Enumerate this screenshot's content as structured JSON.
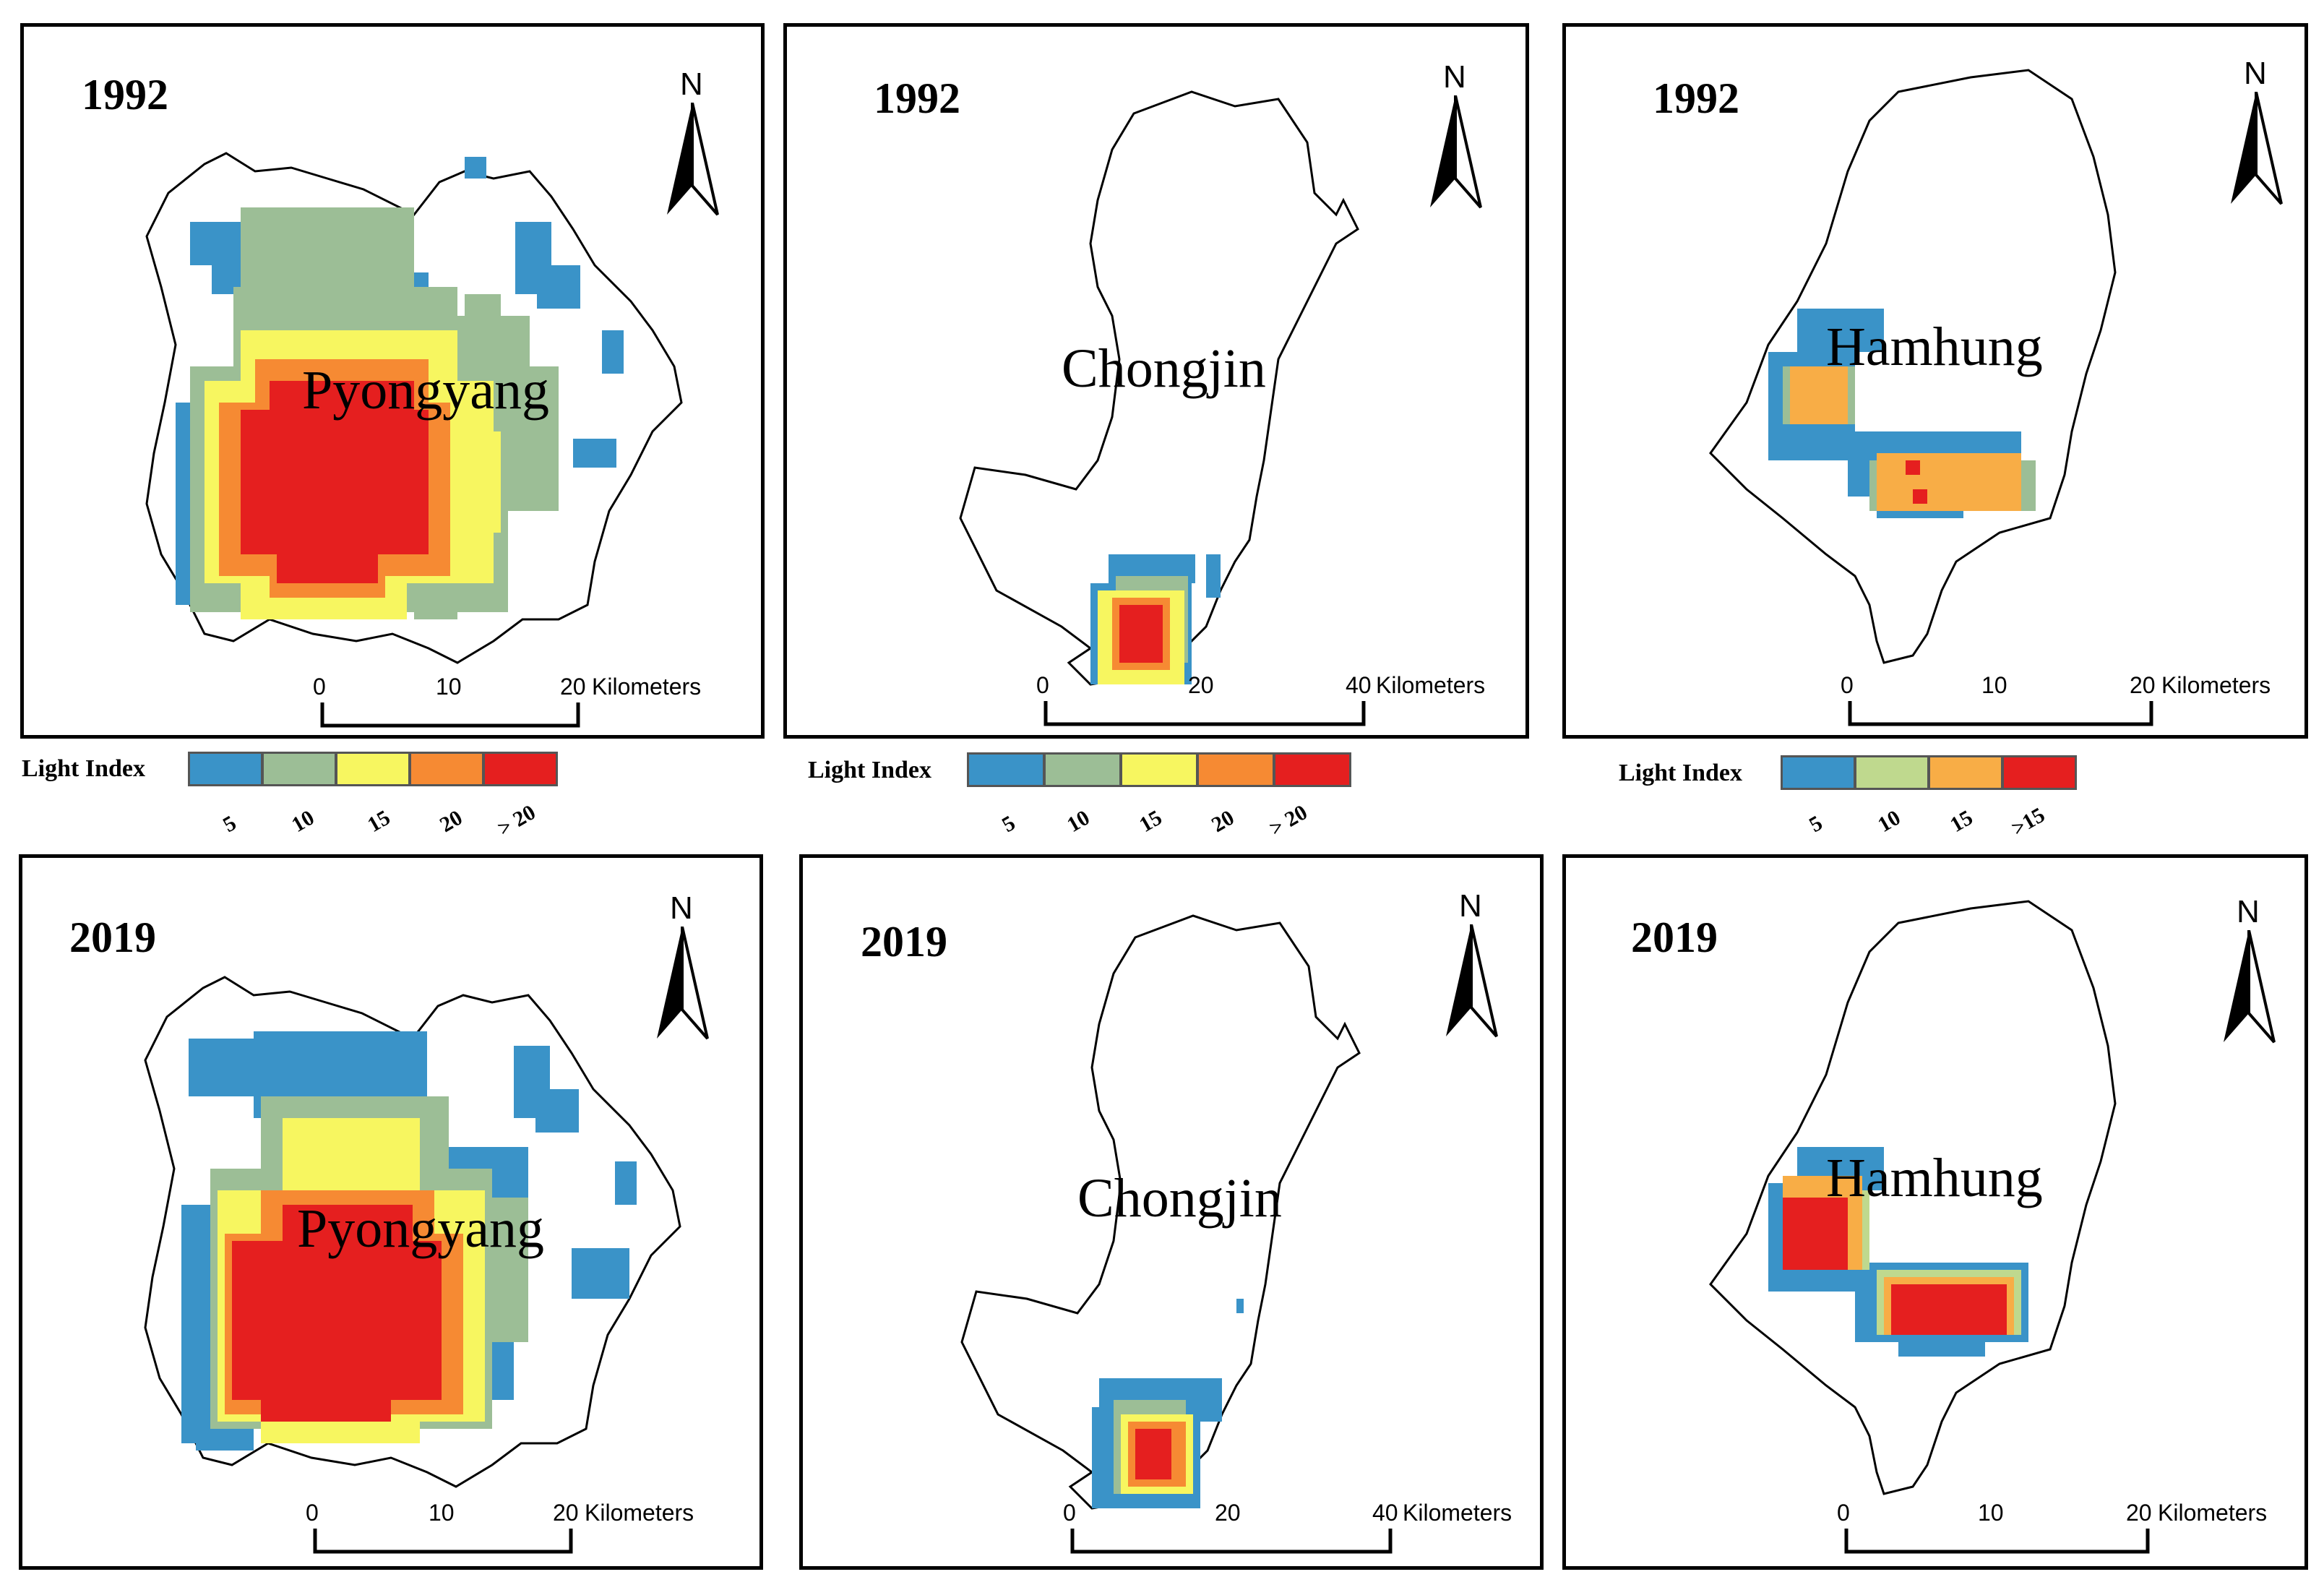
{
  "legend_title": "Light Index",
  "north_label": "N",
  "unit": "Kilometers",
  "colors": {
    "c5": "#3a93c8",
    "c10_gray": "#9cbe96",
    "c10_green": "#bfd98e",
    "c15_yellow": "#f7f660",
    "c15_orange": "#f8ad46",
    "c20": "#f68a33",
    "max": "#e51f1f"
  },
  "legends": [
    {
      "labels": [
        "5",
        "10",
        "15",
        "20",
        "> 20"
      ]
    },
    {
      "labels": [
        "5",
        "10",
        "15",
        "20",
        "> 20"
      ]
    },
    {
      "labels": [
        "5",
        "10",
        "15",
        ">15"
      ]
    }
  ],
  "panels": [
    {
      "year": "1992",
      "city": "Pyongyang",
      "scale": [
        "0",
        "10",
        "20"
      ]
    },
    {
      "year": "1992",
      "city": "Chongjin",
      "scale": [
        "0",
        "20",
        "40"
      ]
    },
    {
      "year": "1992",
      "city": "Hamhung",
      "scale": [
        "0",
        "10",
        "20"
      ]
    },
    {
      "year": "2019",
      "city": "Pyongyang",
      "scale": [
        "0",
        "10",
        "20"
      ]
    },
    {
      "year": "2019",
      "city": "Chongjin",
      "scale": [
        "0",
        "20",
        "40"
      ]
    },
    {
      "year": "2019",
      "city": "Hamhung",
      "scale": [
        "0",
        "10",
        "20"
      ]
    }
  ]
}
